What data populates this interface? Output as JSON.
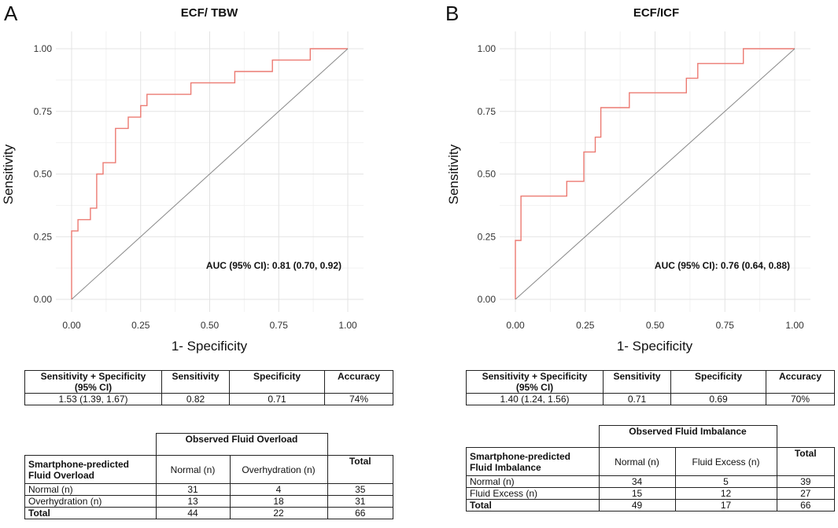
{
  "panels": [
    {
      "letter": "A",
      "chart_data": {
        "type": "line",
        "title": "ECF/ TBW",
        "xlabel": "1- Specificity",
        "ylabel": "Sensitivity",
        "xlim": [
          0,
          1
        ],
        "ylim": [
          0,
          1
        ],
        "xticks": [
          "0.00",
          "0.25",
          "0.50",
          "0.75",
          "1.00"
        ],
        "yticks": [
          "0.00",
          "0.25",
          "0.50",
          "0.75",
          "1.00"
        ],
        "grid": true,
        "annotation": "AUC (95% CI): 0.81 (0.70, 0.92)",
        "series": [
          {
            "name": "ROC",
            "color": "#ec7a72",
            "x": [
              0,
              0,
              0.023,
              0.023,
              0.068,
              0.068,
              0.091,
              0.091,
              0.114,
              0.114,
              0.159,
              0.159,
              0.205,
              0.205,
              0.25,
              0.25,
              0.273,
              0.273,
              0.432,
              0.432,
              0.591,
              0.591,
              0.727,
              0.727,
              0.864,
              0.864,
              1
            ],
            "y": [
              0,
              0.273,
              0.273,
              0.318,
              0.318,
              0.364,
              0.364,
              0.5,
              0.5,
              0.545,
              0.545,
              0.682,
              0.682,
              0.727,
              0.727,
              0.773,
              0.773,
              0.818,
              0.818,
              0.864,
              0.864,
              0.909,
              0.909,
              0.955,
              0.955,
              1,
              1
            ]
          },
          {
            "name": "Reference",
            "color": "#888888",
            "x": [
              0,
              1
            ],
            "y": [
              0,
              1
            ]
          }
        ]
      },
      "metrics": {
        "headers": [
          "Sensitivity + Specificity (95% CI)",
          "Sensitivity",
          "Specificity",
          "Accuracy"
        ],
        "values": [
          "1.53 (1.39, 1.67)",
          "0.82",
          "0.71",
          "74%"
        ]
      },
      "contingency": {
        "observed_header": "Observed Fluid Overload",
        "row_header": "Smartphone-predicted Fluid Overload",
        "col1": "Normal (n)",
        "col2": "Overhydration (n)",
        "total_header": "Total",
        "rows": [
          {
            "label": "Normal (n)",
            "c1": "31",
            "c2": "4",
            "total": "35"
          },
          {
            "label": "Overhydration (n)",
            "c1": "13",
            "c2": "18",
            "total": "31"
          }
        ],
        "total_row": {
          "label": "Total",
          "c1": "44",
          "c2": "22",
          "total": "66"
        }
      }
    },
    {
      "letter": "B",
      "chart_data": {
        "type": "line",
        "title": "ECF/ICF",
        "xlabel": "1- Specificity",
        "ylabel": "Sensitivity",
        "xlim": [
          0,
          1
        ],
        "ylim": [
          0,
          1
        ],
        "xticks": [
          "0.00",
          "0.25",
          "0.50",
          "0.75",
          "1.00"
        ],
        "yticks": [
          "0.00",
          "0.25",
          "0.50",
          "0.75",
          "1.00"
        ],
        "grid": true,
        "annotation": "AUC (95% CI): 0.76 (0.64, 0.88)",
        "series": [
          {
            "name": "ROC",
            "color": "#ec7a72",
            "x": [
              0,
              0,
              0.02,
              0.02,
              0.184,
              0.184,
              0.245,
              0.245,
              0.286,
              0.286,
              0.306,
              0.306,
              0.408,
              0.408,
              0.612,
              0.612,
              0.653,
              0.653,
              0.816,
              0.816,
              1
            ],
            "y": [
              0,
              0.235,
              0.235,
              0.412,
              0.412,
              0.471,
              0.471,
              0.588,
              0.588,
              0.647,
              0.647,
              0.765,
              0.765,
              0.824,
              0.824,
              0.882,
              0.882,
              0.941,
              0.941,
              1,
              1
            ]
          },
          {
            "name": "Reference",
            "color": "#888888",
            "x": [
              0,
              1
            ],
            "y": [
              0,
              1
            ]
          }
        ]
      },
      "metrics": {
        "headers": [
          "Sensitivity + Specificity (95% CI)",
          "Sensitivity",
          "Specificity",
          "Accuracy"
        ],
        "values": [
          "1.40 (1.24, 1.56)",
          "0.71",
          "0.69",
          "70%"
        ]
      },
      "contingency": {
        "observed_header": "Observed Fluid Imbalance",
        "row_header": "Smartphone-predicted Fluid Imbalance",
        "col1": "Normal (n)",
        "col2": "Fluid Excess (n)",
        "total_header": "Total",
        "rows": [
          {
            "label": "Normal (n)",
            "c1": "34",
            "c2": "5",
            "total": "39"
          },
          {
            "label": "Fluid Excess (n)",
            "c1": "15",
            "c2": "12",
            "total": "27"
          }
        ],
        "total_row": {
          "label": "Total",
          "c1": "49",
          "c2": "17",
          "total": "66"
        }
      }
    }
  ]
}
